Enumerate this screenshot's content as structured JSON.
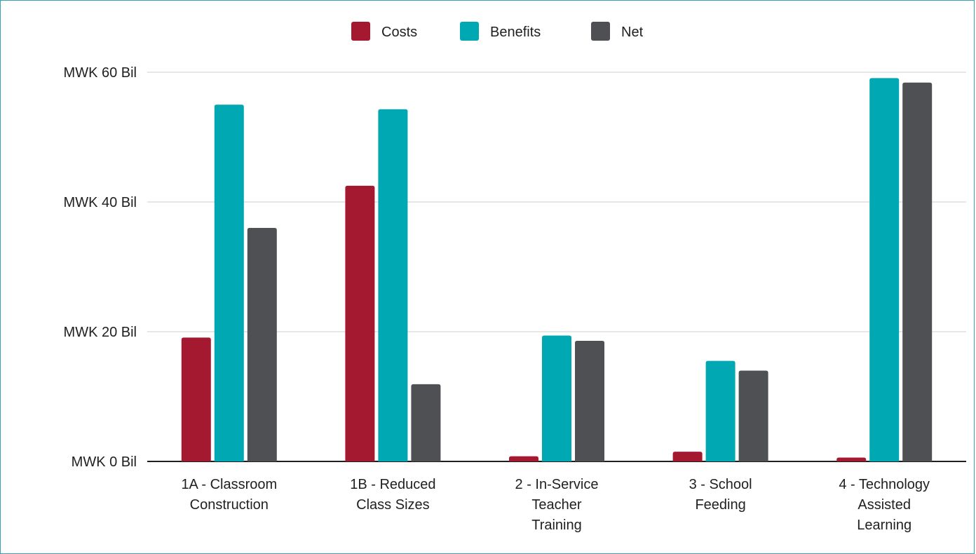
{
  "chart_data": {
    "type": "bar",
    "categories": [
      [
        "1A - Classroom",
        "Construction"
      ],
      [
        "1B - Reduced",
        "Class Sizes"
      ],
      [
        "2 - In-Service",
        "Teacher",
        "Training"
      ],
      [
        "3 - School",
        "Feeding"
      ],
      [
        "4 - Technology",
        "Assisted",
        "Learning"
      ]
    ],
    "series": [
      {
        "name": "Costs",
        "color": "#a51930",
        "values": [
          19.1,
          42.5,
          0.8,
          1.5,
          0.6
        ]
      },
      {
        "name": "Benefits",
        "color": "#00a8b3",
        "values": [
          55.0,
          54.3,
          19.4,
          15.5,
          59.1
        ]
      },
      {
        "name": "Net",
        "color": "#4e5053",
        "values": [
          36.0,
          11.9,
          18.6,
          14.0,
          58.4
        ]
      }
    ],
    "y_ticks": [
      "MWK 0 Bil",
      "MWK 20 Bil",
      "MWK 40 Bil",
      "MWK 60 Bil"
    ],
    "y_tick_values": [
      0,
      20,
      40,
      60
    ],
    "ylim": [
      0,
      60
    ],
    "y_unit": "MWK Bil",
    "grid": true,
    "legend_position": "top-center"
  }
}
